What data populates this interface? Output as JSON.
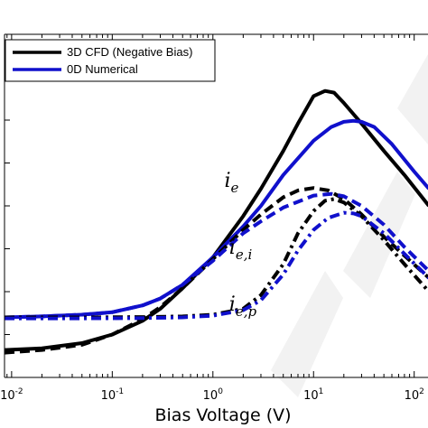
{
  "chart_data": {
    "type": "line",
    "title": "",
    "xlabel": "Bias Voltage (V)",
    "ylabel": "",
    "x_scale": "log",
    "xlim": [
      0.0085,
      140
    ],
    "ylim": [
      0,
      1
    ],
    "grid": false,
    "legend_position": "top-left",
    "x_ticks": [
      {
        "base": "10",
        "exp": "-2",
        "value": 0.01
      },
      {
        "base": "10",
        "exp": "-1",
        "value": 0.1
      },
      {
        "base": "10",
        "exp": "0",
        "value": 1
      },
      {
        "base": "10",
        "exp": "1",
        "value": 10
      },
      {
        "base": "10",
        "exp": "2",
        "value": 100
      }
    ],
    "legend": [
      {
        "label": "3D CFD (Negative Bias)",
        "color": "#000000"
      },
      {
        "label": "0D Numerical",
        "color": "#1010cc"
      }
    ],
    "annotations": [
      {
        "text": "i",
        "sub": "e",
        "x": 1.3,
        "y": 0.555
      },
      {
        "text": "i",
        "sub": "e,i",
        "x": 1.45,
        "y": 0.36
      },
      {
        "text": "i",
        "sub": "e,p",
        "x": 1.45,
        "y": 0.195
      }
    ],
    "series": [
      {
        "group": "ie",
        "color": "#000000",
        "dash": "solid",
        "x": [
          0.0085,
          0.02,
          0.05,
          0.1,
          0.2,
          0.3,
          0.5,
          1,
          2,
          3,
          5,
          7,
          10,
          13,
          16,
          20,
          30,
          50,
          80,
          140
        ],
        "y": [
          0.08,
          0.085,
          0.1,
          0.125,
          0.165,
          0.2,
          0.26,
          0.35,
          0.47,
          0.55,
          0.66,
          0.74,
          0.82,
          0.835,
          0.83,
          0.8,
          0.74,
          0.66,
          0.59,
          0.5
        ]
      },
      {
        "group": "ie",
        "color": "#1010cc",
        "dash": "solid",
        "x": [
          0.0085,
          0.02,
          0.05,
          0.1,
          0.2,
          0.3,
          0.5,
          1,
          2,
          3,
          5,
          10,
          15,
          20,
          25,
          30,
          40,
          60,
          100,
          140
        ],
        "y": [
          0.175,
          0.178,
          0.183,
          0.19,
          0.21,
          0.23,
          0.27,
          0.35,
          0.44,
          0.5,
          0.59,
          0.69,
          0.73,
          0.745,
          0.748,
          0.745,
          0.73,
          0.68,
          0.6,
          0.55
        ]
      },
      {
        "group": "iei",
        "color": "#000000",
        "dash": "dashed",
        "x": [
          0.0085,
          0.02,
          0.05,
          0.1,
          0.2,
          0.3,
          0.5,
          1,
          2,
          3,
          5,
          7,
          10,
          14,
          20,
          30,
          50,
          80,
          140
        ],
        "y": [
          0.072,
          0.08,
          0.095,
          0.125,
          0.17,
          0.205,
          0.26,
          0.345,
          0.43,
          0.475,
          0.525,
          0.545,
          0.552,
          0.545,
          0.52,
          0.475,
          0.41,
          0.355,
          0.29
        ]
      },
      {
        "group": "iei",
        "color": "#1010cc",
        "dash": "dashed",
        "x": [
          0.0085,
          0.02,
          0.05,
          0.1,
          0.2,
          0.3,
          0.5,
          1,
          2,
          3,
          5,
          10,
          15,
          20,
          30,
          50,
          80,
          140
        ],
        "y": [
          0.175,
          0.178,
          0.183,
          0.19,
          0.21,
          0.23,
          0.27,
          0.34,
          0.42,
          0.455,
          0.495,
          0.53,
          0.535,
          0.528,
          0.5,
          0.445,
          0.38,
          0.31
        ]
      },
      {
        "group": "iep",
        "color": "#000000",
        "dash": "dashdot",
        "x": [
          0.0085,
          0.05,
          0.2,
          0.5,
          1,
          2,
          3,
          5,
          7,
          10,
          13,
          16,
          20,
          30,
          50,
          80,
          140
        ],
        "y": [
          0.175,
          0.175,
          0.176,
          0.178,
          0.183,
          0.2,
          0.24,
          0.33,
          0.42,
          0.485,
          0.515,
          0.52,
          0.51,
          0.47,
          0.4,
          0.33,
          0.25
        ]
      },
      {
        "group": "iep",
        "color": "#1010cc",
        "dash": "dashdot",
        "x": [
          0.0085,
          0.05,
          0.2,
          0.5,
          1,
          2,
          3,
          5,
          7,
          10,
          14,
          20,
          25,
          30,
          50,
          80,
          140
        ],
        "y": [
          0.172,
          0.172,
          0.173,
          0.175,
          0.18,
          0.196,
          0.225,
          0.3,
          0.37,
          0.43,
          0.465,
          0.48,
          0.478,
          0.47,
          0.42,
          0.36,
          0.29
        ]
      }
    ]
  }
}
